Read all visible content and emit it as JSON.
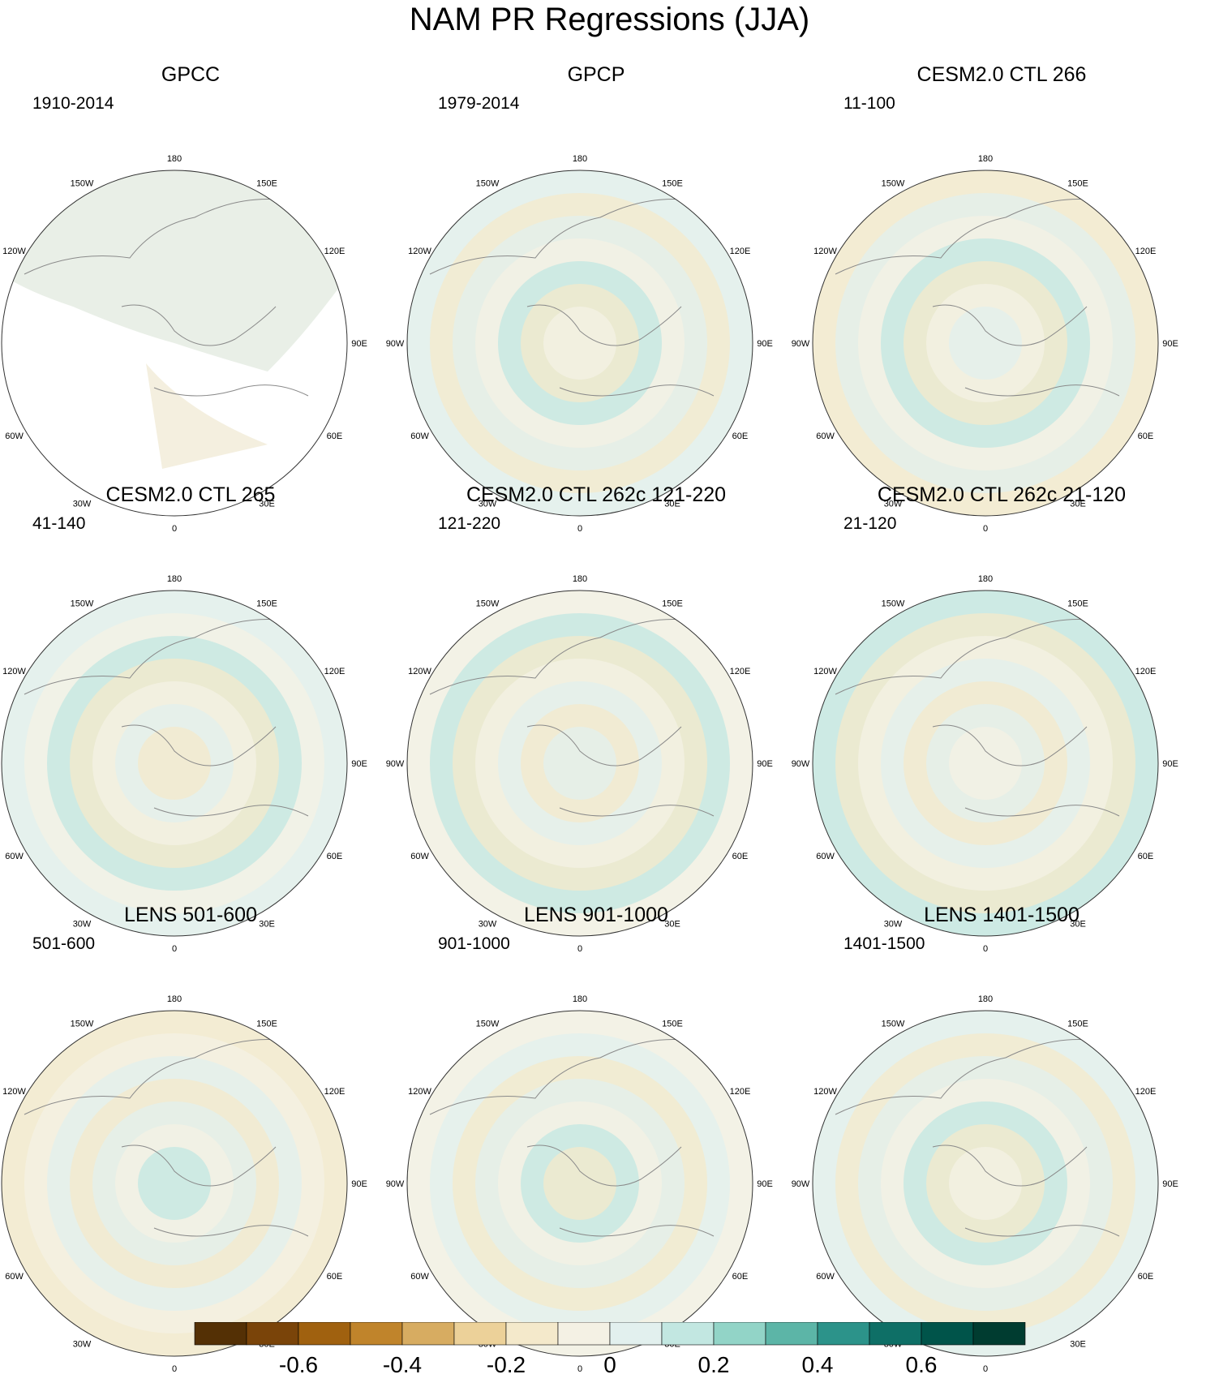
{
  "title": "NAM PR Regressions (JJA)",
  "panels": [
    {
      "title": "GPCC",
      "period": "1910-2014",
      "land_only": true
    },
    {
      "title": "GPCP",
      "period": "1979-2014"
    },
    {
      "title": "CESM2.0 CTL 266",
      "period": "11-100"
    },
    {
      "title": "CESM2.0 CTL 265",
      "period": "41-140"
    },
    {
      "title": "CESM2.0 CTL 262c 121-220",
      "period": "121-220"
    },
    {
      "title": "CESM2.0 CTL 262c 21-120",
      "period": "21-120"
    },
    {
      "title": "LENS 501-600",
      "period": "501-600"
    },
    {
      "title": "LENS 901-1000",
      "period": "901-1000"
    },
    {
      "title": "LENS 1401-1500",
      "period": "1401-1500"
    }
  ],
  "longitude_labels": [
    "180",
    "150E",
    "120E",
    "90E",
    "60E",
    "30E",
    "0",
    "30W",
    "60W",
    "90W",
    "120W",
    "150W"
  ],
  "colorbar": {
    "colors": [
      "#543005",
      "#7a4409",
      "#a0610f",
      "#c0842b",
      "#d7ac61",
      "#ecd199",
      "#f4e9cb",
      "#f4f1e4",
      "#e2f0ee",
      "#c2e7e1",
      "#92d4c7",
      "#5cb5a7",
      "#2c938a",
      "#0e6f66",
      "#00544a",
      "#003c30"
    ],
    "tick_labels": [
      "-0.6",
      "-0.4",
      "-0.2",
      "0",
      "0.2",
      "0.4",
      "0.6"
    ]
  }
}
